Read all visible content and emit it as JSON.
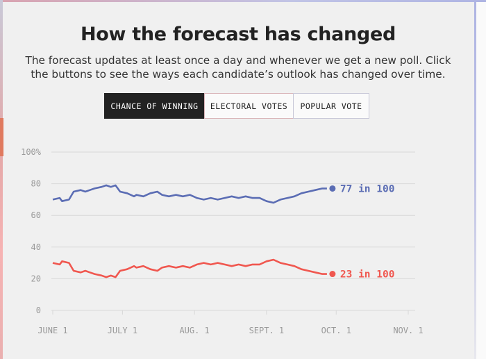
{
  "header": {
    "title": "How the forecast has changed",
    "subtitle": "The forecast updates at least once a day and whenever we get a new poll. Click the buttons to see the ways each candidate’s outlook has changed over time."
  },
  "tabs": [
    {
      "label": "CHANCE OF WINNING",
      "active": true
    },
    {
      "label": "ELECTORAL VOTES",
      "active": false
    },
    {
      "label": "POPULAR VOTE",
      "active": false
    }
  ],
  "colors": {
    "blue": "#5b6db4",
    "red": "#f0574f",
    "grid": "#d8d8d8",
    "axis_text": "#999999"
  },
  "chart_data": {
    "type": "line",
    "title": "",
    "xlabel": "",
    "ylabel": "",
    "ylim": [
      0,
      100
    ],
    "xlim": [
      "2020-06-01",
      "2020-11-01"
    ],
    "y_ticks": [
      {
        "value": 0,
        "label": "0"
      },
      {
        "value": 20,
        "label": "20"
      },
      {
        "value": 40,
        "label": "40"
      },
      {
        "value": 60,
        "label": "60"
      },
      {
        "value": 80,
        "label": "80"
      },
      {
        "value": 100,
        "label": "100%"
      }
    ],
    "x_ticks": [
      {
        "date": "2020-06-01",
        "label": "JUNE 1"
      },
      {
        "date": "2020-07-01",
        "label": "JULY 1"
      },
      {
        "date": "2020-08-01",
        "label": "AUG. 1"
      },
      {
        "date": "2020-09-01",
        "label": "SEPT. 1"
      },
      {
        "date": "2020-10-01",
        "label": "OCT. 1"
      },
      {
        "date": "2020-11-01",
        "label": "NOV. 1"
      }
    ],
    "grid": true,
    "x": [
      "2020-06-01",
      "2020-06-04",
      "2020-06-05",
      "2020-06-08",
      "2020-06-10",
      "2020-06-13",
      "2020-06-15",
      "2020-06-17",
      "2020-06-19",
      "2020-06-22",
      "2020-06-24",
      "2020-06-26",
      "2020-06-28",
      "2020-06-30",
      "2020-07-03",
      "2020-07-06",
      "2020-07-07",
      "2020-07-10",
      "2020-07-13",
      "2020-07-16",
      "2020-07-18",
      "2020-07-21",
      "2020-07-24",
      "2020-07-27",
      "2020-07-30",
      "2020-08-02",
      "2020-08-05",
      "2020-08-08",
      "2020-08-11",
      "2020-08-14",
      "2020-08-17",
      "2020-08-20",
      "2020-08-23",
      "2020-08-26",
      "2020-08-29",
      "2020-09-01",
      "2020-09-04",
      "2020-09-07",
      "2020-09-10",
      "2020-09-13",
      "2020-09-16",
      "2020-09-19",
      "2020-09-22",
      "2020-09-25",
      "2020-09-27"
    ],
    "series": [
      {
        "candidate": "blue",
        "end_label": "77 in 100",
        "values": [
          70,
          71,
          69,
          70,
          75,
          76,
          75,
          76,
          77,
          78,
          79,
          78,
          79,
          75,
          74,
          72,
          73,
          72,
          74,
          75,
          73,
          72,
          73,
          72,
          73,
          71,
          70,
          71,
          70,
          71,
          72,
          71,
          72,
          71,
          71,
          69,
          68,
          70,
          71,
          72,
          74,
          75,
          76,
          77,
          77
        ]
      },
      {
        "candidate": "red",
        "end_label": "23 in 100",
        "values": [
          30,
          29,
          31,
          30,
          25,
          24,
          25,
          24,
          23,
          22,
          21,
          22,
          21,
          25,
          26,
          28,
          27,
          28,
          26,
          25,
          27,
          28,
          27,
          28,
          27,
          29,
          30,
          29,
          30,
          29,
          28,
          29,
          28,
          29,
          29,
          31,
          32,
          30,
          29,
          28,
          26,
          25,
          24,
          23,
          23
        ]
      }
    ]
  }
}
